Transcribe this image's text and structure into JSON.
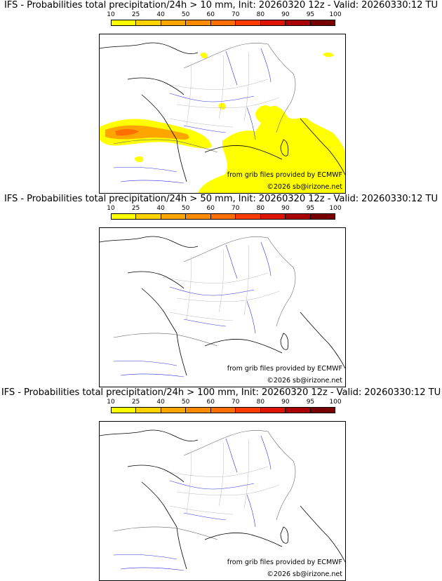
{
  "legend": {
    "ticks": [
      "10",
      "25",
      "40",
      "50",
      "60",
      "70",
      "80",
      "90",
      "95",
      "100"
    ],
    "colors": [
      "#ffff00",
      "#ffd200",
      "#ffa500",
      "#ff8c00",
      "#ff6e00",
      "#ff3c00",
      "#dc1400",
      "#aa0000",
      "#780000"
    ]
  },
  "panels": [
    {
      "title": "IFS - Probabilities total precipitation/24h > 10 mm, Init: 20260320 12z - Valid: 20260330:12 TU",
      "source_note": "from grib files provided by ECMWF",
      "copyright": "©2026 sb@irizone.net"
    },
    {
      "title": "IFS - Probabilities total precipitation/24h > 50 mm, Init: 20260320 12z - Valid: 20260330:12 TU",
      "source_note": "from grib files provided by ECMWF",
      "copyright": "©2026 sb@irizone.net"
    },
    {
      "title": "IFS - Probabilities total precipitation/24h > 100 mm, Init: 20260320 12z - Valid: 20260330:12 TU",
      "source_note": "from grib files provided by ECMWF",
      "copyright": "©2026 sb@irizone.net"
    }
  ]
}
